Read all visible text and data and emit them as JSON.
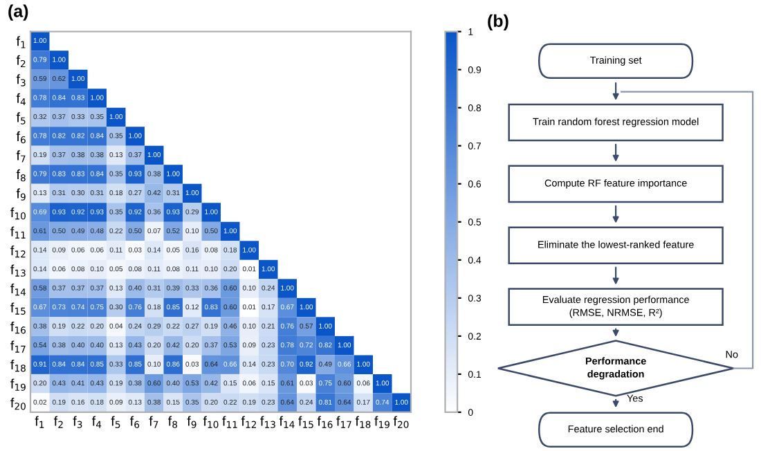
{
  "chart_data": [
    {
      "type": "heatmap",
      "title": "(a)",
      "cell_labels": [
        [
          "1.00",
          null,
          null,
          null,
          null,
          null,
          null,
          null,
          null,
          null,
          null,
          null,
          null,
          null,
          null,
          null,
          null,
          null,
          null,
          null
        ],
        [
          "0.79",
          "1.00",
          null,
          null,
          null,
          null,
          null,
          null,
          null,
          null,
          null,
          null,
          null,
          null,
          null,
          null,
          null,
          null,
          null,
          null
        ],
        [
          "0.59",
          "0.62",
          "1.00",
          null,
          null,
          null,
          null,
          null,
          null,
          null,
          null,
          null,
          null,
          null,
          null,
          null,
          null,
          null,
          null,
          null
        ],
        [
          "0.78",
          "0.84",
          "0.83",
          "1.00",
          null,
          null,
          null,
          null,
          null,
          null,
          null,
          null,
          null,
          null,
          null,
          null,
          null,
          null,
          null,
          null
        ],
        [
          "0.32",
          "0.37",
          "0.33",
          "0.35",
          "1.00",
          null,
          null,
          null,
          null,
          null,
          null,
          null,
          null,
          null,
          null,
          null,
          null,
          null,
          null,
          null
        ],
        [
          "0.78",
          "0.82",
          "0.82",
          "0.84",
          "0.35",
          "1.00",
          null,
          null,
          null,
          null,
          null,
          null,
          null,
          null,
          null,
          null,
          null,
          null,
          null,
          null
        ],
        [
          "0.19",
          "0.37",
          "0.38",
          "0.38",
          "0.13",
          "0.37",
          "1.00",
          null,
          null,
          null,
          null,
          null,
          null,
          null,
          null,
          null,
          null,
          null,
          null,
          null
        ],
        [
          "0.79",
          "0.83",
          "0.83",
          "0.84",
          "0.35",
          "0.93",
          "0.38",
          "1.00",
          null,
          null,
          null,
          null,
          null,
          null,
          null,
          null,
          null,
          null,
          null,
          null
        ],
        [
          "0.13",
          "0.31",
          "0.30",
          "0.31",
          "0.18",
          "0.27",
          "0.42",
          "0.31",
          "1.00",
          null,
          null,
          null,
          null,
          null,
          null,
          null,
          null,
          null,
          null,
          null
        ],
        [
          "0.69",
          "0.93",
          "0.92",
          "0.93",
          "0.35",
          "0.92",
          "0.36",
          "0.93",
          "0.29",
          "1.00",
          null,
          null,
          null,
          null,
          null,
          null,
          null,
          null,
          null,
          null
        ],
        [
          "0.61",
          "0.50",
          "0.49",
          "0.48",
          "0.22",
          "0.50",
          "0.07",
          "0.52",
          "0.10",
          "0.50",
          "1.00",
          null,
          null,
          null,
          null,
          null,
          null,
          null,
          null,
          null
        ],
        [
          "0.14",
          "0.09",
          "0.06",
          "0.06",
          "0.11",
          "0.03",
          "0.14",
          "0.05",
          "0.16",
          "0.08",
          "0.18",
          "1.00",
          null,
          null,
          null,
          null,
          null,
          null,
          null,
          null
        ],
        [
          "0.14",
          "0.06",
          "0.08",
          "0.10",
          "0.05",
          "0.08",
          "0.11",
          "0.08",
          "0.11",
          "0.10",
          "0.20",
          "0.01",
          "1.00",
          null,
          null,
          null,
          null,
          null,
          null,
          null
        ],
        [
          "0.58",
          "0.37",
          "0.37",
          "0.37",
          "0.13",
          "0.40",
          "0.31",
          "0.39",
          "0.33",
          "0.36",
          "0.60",
          "0.10",
          "0.24",
          "1.00",
          null,
          null,
          null,
          null,
          null,
          null
        ],
        [
          "0.67",
          "0.73",
          "0.74",
          "0.75",
          "0.30",
          "0.76",
          "0.18",
          "0.85",
          "0.12",
          "0.83",
          "0.60",
          "0.01",
          "0.17",
          "0.67",
          "1.00",
          null,
          null,
          null,
          null,
          null
        ],
        [
          "0.38",
          "0.19",
          "0.22",
          "0.20",
          "0.04",
          "0.24",
          "0.29",
          "0.22",
          "0.27",
          "0.19",
          "0.46",
          "0.10",
          "0.21",
          "0.76",
          "0.57",
          "1.00",
          null,
          null,
          null,
          null
        ],
        [
          "0.54",
          "0.38",
          "0.40",
          "0.40",
          "0.13",
          "0.43",
          "0.20",
          "0.42",
          "0.20",
          "0.37",
          "0.53",
          "0.09",
          "0.23",
          "0.78",
          "0.72",
          "0.82",
          "1.00",
          null,
          null,
          null
        ],
        [
          "0.91",
          "0.84",
          "0.84",
          "0.85",
          "0.33",
          "0.85",
          "0.10",
          "0.86",
          "0.03",
          "0.64",
          "0.66",
          "0.14",
          "0.23",
          "0.70",
          "0.92",
          "0.49",
          "0.66",
          "1.00",
          null,
          null
        ],
        [
          "0.20",
          "0.43",
          "0.41",
          "0.43",
          "0.19",
          "0.38",
          "0.60",
          "0.40",
          "0.53",
          "0.42",
          "0.15",
          "0.06",
          "0.15",
          "0.61",
          "0.03",
          "0.75",
          "0.60",
          "0.06",
          "1.00",
          null
        ],
        [
          "0.02",
          "0.19",
          "0.16",
          "0.18",
          "0.09",
          "0.13",
          "0.38",
          "0.15",
          "0.35",
          "0.20",
          "0.22",
          "0.19",
          "0.23",
          "0.64",
          "0.24",
          "0.81",
          "0.64",
          "0.17",
          "0.74",
          "1.00"
        ]
      ],
      "clim": [
        0,
        1
      ],
      "cticks": [
        0,
        0.1,
        0.2,
        0.3,
        0.4,
        0.5,
        0.6,
        0.7,
        0.8,
        0.9,
        1
      ],
      "categories": [
        "f$_{1}$",
        "f$_{2}$",
        "f$_{3}$",
        "f$_{4}$",
        "f$_{5}$",
        "f$_{6}$",
        "f$_{7}$",
        "f$_{8}$",
        "f$_{9}$",
        "f$_{10}$",
        "f$_{11}$",
        "f$_{12}$",
        "f$_{13}$",
        "f$_{14}$",
        "f$_{15}$",
        "f$_{16}$",
        "f$_{17}$",
        "f$_{18}$",
        "f$_{19}$",
        "f$_{20}$"
      ],
      "y_categories": [
        "f$_{1}$",
        "f$_{2}$",
        "f$_{3}$",
        "f$_{4}$",
        "f$_{5}$",
        "f$_{6}$",
        "f$_{7}$",
        "f$_{8}$",
        "f$_{9}$",
        "f$_{10}$",
        "f$_{11}$",
        "f$_{12}$",
        "f$_{13}$",
        "f$_{14}$",
        "f$_{15}$",
        "f$_{16}$",
        "f$_{17}$",
        "f$_{18}$",
        "f$_{19}$",
        "f$_{20}$"
      ],
      "cells": [
        [
          1.0,
          null,
          null,
          null,
          null,
          null,
          null,
          null,
          null,
          null,
          null,
          null,
          null,
          null,
          null,
          null,
          null,
          null,
          null,
          null
        ],
        [
          0.79,
          1.0,
          null,
          null,
          null,
          null,
          null,
          null,
          null,
          null,
          null,
          null,
          null,
          null,
          null,
          null,
          null,
          null,
          null,
          null
        ],
        [
          0.59,
          0.62,
          1.0,
          null,
          null,
          null,
          null,
          null,
          null,
          null,
          null,
          null,
          null,
          null,
          null,
          null,
          null,
          null,
          null,
          null
        ],
        [
          0.78,
          0.84,
          0.83,
          1.0,
          null,
          null,
          null,
          null,
          null,
          null,
          null,
          null,
          null,
          null,
          null,
          null,
          null,
          null,
          null,
          null
        ],
        [
          0.32,
          0.37,
          0.33,
          0.35,
          1.0,
          null,
          null,
          null,
          null,
          null,
          null,
          null,
          null,
          null,
          null,
          null,
          null,
          null,
          null,
          null
        ],
        [
          0.78,
          0.82,
          0.82,
          0.84,
          0.35,
          1.0,
          null,
          null,
          null,
          null,
          null,
          null,
          null,
          null,
          null,
          null,
          null,
          null,
          null,
          null
        ],
        [
          0.19,
          0.37,
          0.38,
          0.38,
          0.13,
          0.37,
          1.0,
          null,
          null,
          null,
          null,
          null,
          null,
          null,
          null,
          null,
          null,
          null,
          null,
          null
        ],
        [
          0.79,
          0.83,
          0.83,
          0.84,
          0.35,
          0.93,
          0.38,
          1.0,
          null,
          null,
          null,
          null,
          null,
          null,
          null,
          null,
          null,
          null,
          null,
          null
        ],
        [
          0.13,
          0.31,
          0.3,
          0.31,
          0.18,
          0.27,
          0.42,
          0.31,
          1.0,
          null,
          null,
          null,
          null,
          null,
          null,
          null,
          null,
          null,
          null,
          null
        ],
        [
          0.69,
          0.93,
          0.92,
          0.93,
          0.35,
          0.92,
          0.36,
          0.93,
          0.29,
          1.0,
          null,
          null,
          null,
          null,
          null,
          null,
          null,
          null,
          null,
          null
        ],
        [
          0.61,
          0.5,
          0.49,
          0.48,
          0.22,
          0.5,
          0.07,
          0.52,
          0.1,
          0.5,
          1.0,
          null,
          null,
          null,
          null,
          null,
          null,
          null,
          null,
          null
        ],
        [
          0.14,
          0.09,
          0.06,
          0.06,
          0.11,
          0.03,
          0.14,
          0.05,
          0.16,
          0.08,
          0.18,
          1.0,
          null,
          null,
          null,
          null,
          null,
          null,
          null,
          null
        ],
        [
          0.14,
          0.06,
          0.08,
          0.1,
          0.05,
          0.08,
          0.11,
          0.08,
          0.11,
          0.1,
          0.2,
          0.01,
          1.0,
          null,
          null,
          null,
          null,
          null,
          null,
          null
        ],
        [
          0.58,
          0.37,
          0.37,
          0.37,
          0.13,
          0.4,
          0.31,
          0.39,
          0.33,
          0.36,
          0.6,
          0.1,
          0.24,
          1.0,
          null,
          null,
          null,
          null,
          null,
          null
        ],
        [
          0.67,
          0.73,
          0.74,
          0.75,
          0.3,
          0.76,
          0.18,
          0.85,
          0.12,
          0.83,
          0.6,
          0.01,
          0.17,
          0.67,
          1.0,
          null,
          null,
          null,
          null,
          null
        ],
        [
          0.38,
          0.19,
          0.22,
          0.2,
          0.04,
          0.24,
          0.29,
          0.22,
          0.27,
          0.19,
          0.46,
          0.1,
          0.21,
          0.76,
          0.57,
          1.0,
          null,
          null,
          null,
          null
        ],
        [
          0.54,
          0.38,
          0.4,
          0.4,
          0.13,
          0.43,
          0.2,
          0.42,
          0.2,
          0.37,
          0.53,
          0.09,
          0.23,
          0.78,
          0.72,
          0.82,
          1.0,
          null,
          null,
          null
        ],
        [
          0.91,
          0.84,
          0.84,
          0.85,
          0.33,
          0.85,
          0.1,
          0.86,
          0.03,
          0.64,
          0.66,
          0.14,
          0.23,
          0.7,
          0.92,
          0.49,
          0.66,
          1.0,
          null,
          null
        ],
        [
          0.2,
          0.43,
          0.41,
          0.43,
          0.19,
          0.38,
          0.6,
          0.4,
          0.53,
          0.42,
          0.15,
          0.06,
          0.15,
          0.61,
          0.03,
          0.75,
          0.6,
          0.06,
          1.0,
          null
        ],
        [
          0.02,
          0.19,
          0.16,
          0.18,
          0.09,
          0.13,
          0.38,
          0.15,
          0.35,
          0.2,
          0.22,
          0.19,
          0.23,
          0.64,
          0.24,
          0.81,
          0.64,
          0.17,
          0.74,
          1.0
        ]
      ]
    },
    {
      "type": "other",
      "title": "(b)",
      "annotations": [
        "Training set",
        "Train random forest regression model",
        "Compute RF feature importance",
        "Eliminate the lowest-ranked feature",
        "Evaluate regression performance\n(RMSE, NRMSE, R²)",
        "Performance\ndegradation",
        "Feature selection end",
        "Yes",
        "No"
      ]
    }
  ]
}
